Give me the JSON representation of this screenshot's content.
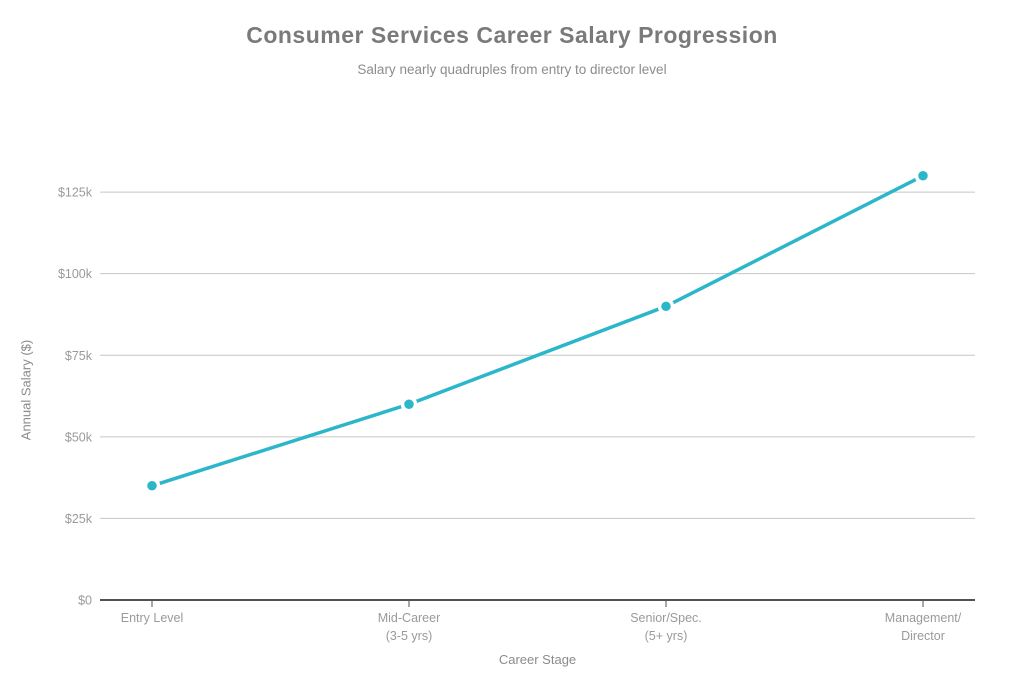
{
  "chart_data": {
    "type": "line",
    "title": "Consumer Services Career Salary Progression",
    "subtitle": "Salary nearly quadruples from entry to director level",
    "xlabel": "Career Stage",
    "ylabel": "Annual Salary ($)",
    "categories": [
      [
        "Entry Level"
      ],
      [
        "Mid-Career",
        "(3-5 yrs)"
      ],
      [
        "Senior/Spec.",
        "(5+ yrs)"
      ],
      [
        "Management/",
        "Director"
      ]
    ],
    "series": [
      {
        "name": "Annual Salary",
        "values": [
          35000,
          60000,
          90000,
          130000
        ]
      }
    ],
    "yticks": [
      0,
      25000,
      50000,
      75000,
      100000,
      125000
    ],
    "ytick_labels": [
      "$0",
      "$25k",
      "$50k",
      "$75k",
      "$100k",
      "$125k"
    ],
    "ylim": [
      0,
      142500
    ],
    "grid": true,
    "legend": "none",
    "colors": {
      "line": "#2bb6c9",
      "marker_fill": "#2bb6c9",
      "marker_stroke": "#ffffff",
      "grid": "#c6c6c6",
      "axis": "#4f5358",
      "tick_label": "#9a9a9a",
      "title": "#7a7a7a",
      "subtitle": "#8c8c8c",
      "axis_label": "#8c8c8c"
    }
  }
}
